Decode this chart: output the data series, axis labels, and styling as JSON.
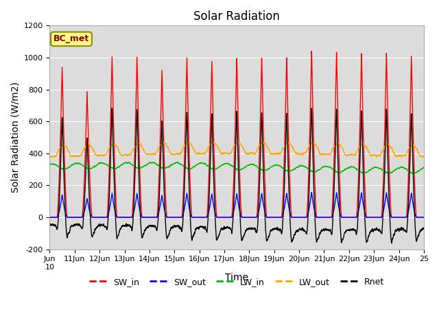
{
  "title": "Solar Radiation",
  "xlabel": "Time",
  "ylabel": "Solar Radiation (W/m2)",
  "ylim": [
    -200,
    1200
  ],
  "yticks": [
    -200,
    0,
    200,
    400,
    600,
    800,
    1000,
    1200
  ],
  "annotation": "BC_met",
  "line_colors": {
    "SW_in": "#FF0000",
    "SW_out": "#0000FF",
    "LW_in": "#00BB00",
    "LW_out": "#FFA500",
    "Rnet": "#000000"
  },
  "legend_labels": [
    "SW_in",
    "SW_out",
    "LW_in",
    "LW_out",
    "Rnet"
  ],
  "start_day": 10,
  "end_day": 25,
  "n_points": 3600,
  "plot_bg": "#DCDCDC",
  "fig_bg": "#FFFFFF",
  "title_fontsize": 12,
  "axis_fontsize": 10,
  "tick_fontsize": 8
}
